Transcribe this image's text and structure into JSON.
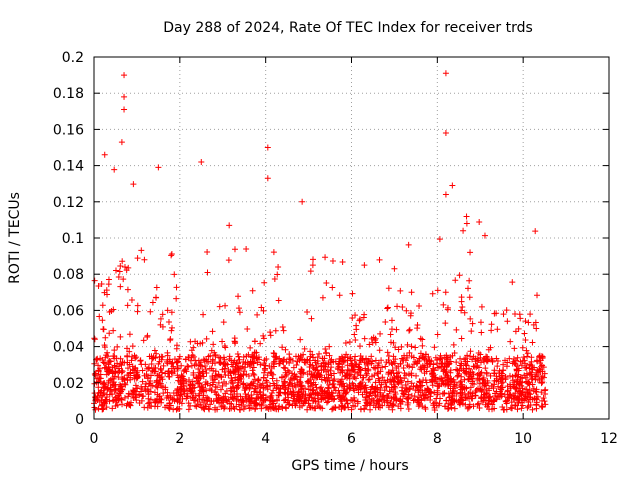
{
  "chart_data": {
    "type": "scatter",
    "title": "Day 288 of 2024, Rate Of TEC Index for receiver trds",
    "xlabel": "GPS time / hours",
    "ylabel": "ROTI / TECUs",
    "xlim": [
      0,
      12
    ],
    "ylim": [
      0,
      0.2
    ],
    "x_ticks": [
      "0",
      "2",
      "4",
      "6",
      "8",
      "10",
      "12"
    ],
    "y_ticks": [
      "0",
      "0.02",
      "0.04",
      "0.06",
      "0.08",
      "0.1",
      "0.12",
      "0.14",
      "0.16",
      "0.18",
      "0.2"
    ],
    "grid": true,
    "marker": "plus",
    "series_color": "#ff0000",
    "data_x_range": [
      0,
      10.55
    ],
    "baseline_roti_band": [
      0.005,
      0.035
    ],
    "notable_points": [
      {
        "x": 0.7,
        "y": 0.19
      },
      {
        "x": 0.7,
        "y": 0.178
      },
      {
        "x": 0.7,
        "y": 0.171
      },
      {
        "x": 0.65,
        "y": 0.153
      },
      {
        "x": 0.25,
        "y": 0.146
      },
      {
        "x": 1.5,
        "y": 0.139
      },
      {
        "x": 2.5,
        "y": 0.142
      },
      {
        "x": 4.05,
        "y": 0.15
      },
      {
        "x": 4.05,
        "y": 0.133
      },
      {
        "x": 4.85,
        "y": 0.12
      },
      {
        "x": 8.2,
        "y": 0.191
      },
      {
        "x": 8.2,
        "y": 0.158
      },
      {
        "x": 8.35,
        "y": 0.129
      },
      {
        "x": 8.2,
        "y": 0.124
      },
      {
        "x": 8.6,
        "y": 0.104
      },
      {
        "x": 3.15,
        "y": 0.107
      },
      {
        "x": 5.1,
        "y": 0.085
      },
      {
        "x": 6.3,
        "y": 0.085
      },
      {
        "x": 7.0,
        "y": 0.083
      },
      {
        "x": 7.4,
        "y": 0.07
      }
    ]
  }
}
